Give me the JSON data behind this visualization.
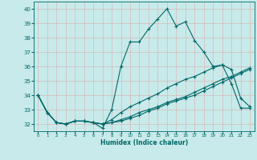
{
  "title": "",
  "xlabel": "Humidex (Indice chaleur)",
  "ylabel": "",
  "background_color": "#c8eaea",
  "grid_color": "#d8b8b8",
  "line_color": "#006868",
  "xlim": [
    -0.5,
    23.5
  ],
  "ylim": [
    31.5,
    40.5
  ],
  "yticks": [
    32,
    33,
    34,
    35,
    36,
    37,
    38,
    39,
    40
  ],
  "xticks": [
    0,
    1,
    2,
    3,
    4,
    5,
    6,
    7,
    8,
    9,
    10,
    11,
    12,
    13,
    14,
    15,
    16,
    17,
    18,
    19,
    20,
    21,
    22,
    23
  ],
  "lines": [
    {
      "x": [
        0,
        1,
        2,
        3,
        4,
        5,
        6,
        7,
        8,
        9,
        10,
        11,
        12,
        13,
        14,
        15,
        16,
        17,
        18,
        19,
        20,
        21,
        22,
        23
      ],
      "y": [
        34.0,
        32.8,
        32.1,
        32.0,
        32.2,
        32.2,
        32.1,
        31.7,
        33.0,
        36.0,
        37.7,
        37.7,
        38.6,
        39.3,
        40.0,
        38.8,
        39.1,
        37.8,
        37.0,
        36.0,
        36.1,
        34.8,
        33.1,
        33.1
      ]
    },
    {
      "x": [
        0,
        1,
        2,
        3,
        4,
        5,
        6,
        7,
        8,
        9,
        10,
        11,
        12,
        13,
        14,
        15,
        16,
        17,
        18,
        19,
        20,
        21,
        22,
        23
      ],
      "y": [
        34.0,
        32.8,
        32.1,
        32.0,
        32.2,
        32.2,
        32.1,
        32.0,
        32.3,
        32.8,
        33.2,
        33.5,
        33.8,
        34.1,
        34.5,
        34.8,
        35.1,
        35.3,
        35.6,
        35.9,
        36.1,
        35.8,
        33.8,
        33.2
      ]
    },
    {
      "x": [
        0,
        1,
        2,
        3,
        4,
        5,
        6,
        7,
        8,
        9,
        10,
        11,
        12,
        13,
        14,
        15,
        16,
        17,
        18,
        19,
        20,
        21,
        22,
        23
      ],
      "y": [
        34.0,
        32.8,
        32.1,
        32.0,
        32.2,
        32.2,
        32.1,
        32.0,
        32.1,
        32.3,
        32.5,
        32.8,
        33.0,
        33.2,
        33.5,
        33.7,
        33.9,
        34.2,
        34.5,
        34.8,
        35.1,
        35.3,
        35.6,
        35.9
      ]
    },
    {
      "x": [
        0,
        1,
        2,
        3,
        4,
        5,
        6,
        7,
        8,
        9,
        10,
        11,
        12,
        13,
        14,
        15,
        16,
        17,
        18,
        19,
        20,
        21,
        22,
        23
      ],
      "y": [
        34.0,
        32.8,
        32.1,
        32.0,
        32.2,
        32.2,
        32.1,
        32.0,
        32.1,
        32.2,
        32.4,
        32.6,
        32.9,
        33.1,
        33.4,
        33.6,
        33.8,
        34.0,
        34.3,
        34.6,
        34.9,
        35.2,
        35.5,
        35.8
      ]
    }
  ],
  "marker": "+",
  "markersize": 3,
  "linewidth": 0.8
}
